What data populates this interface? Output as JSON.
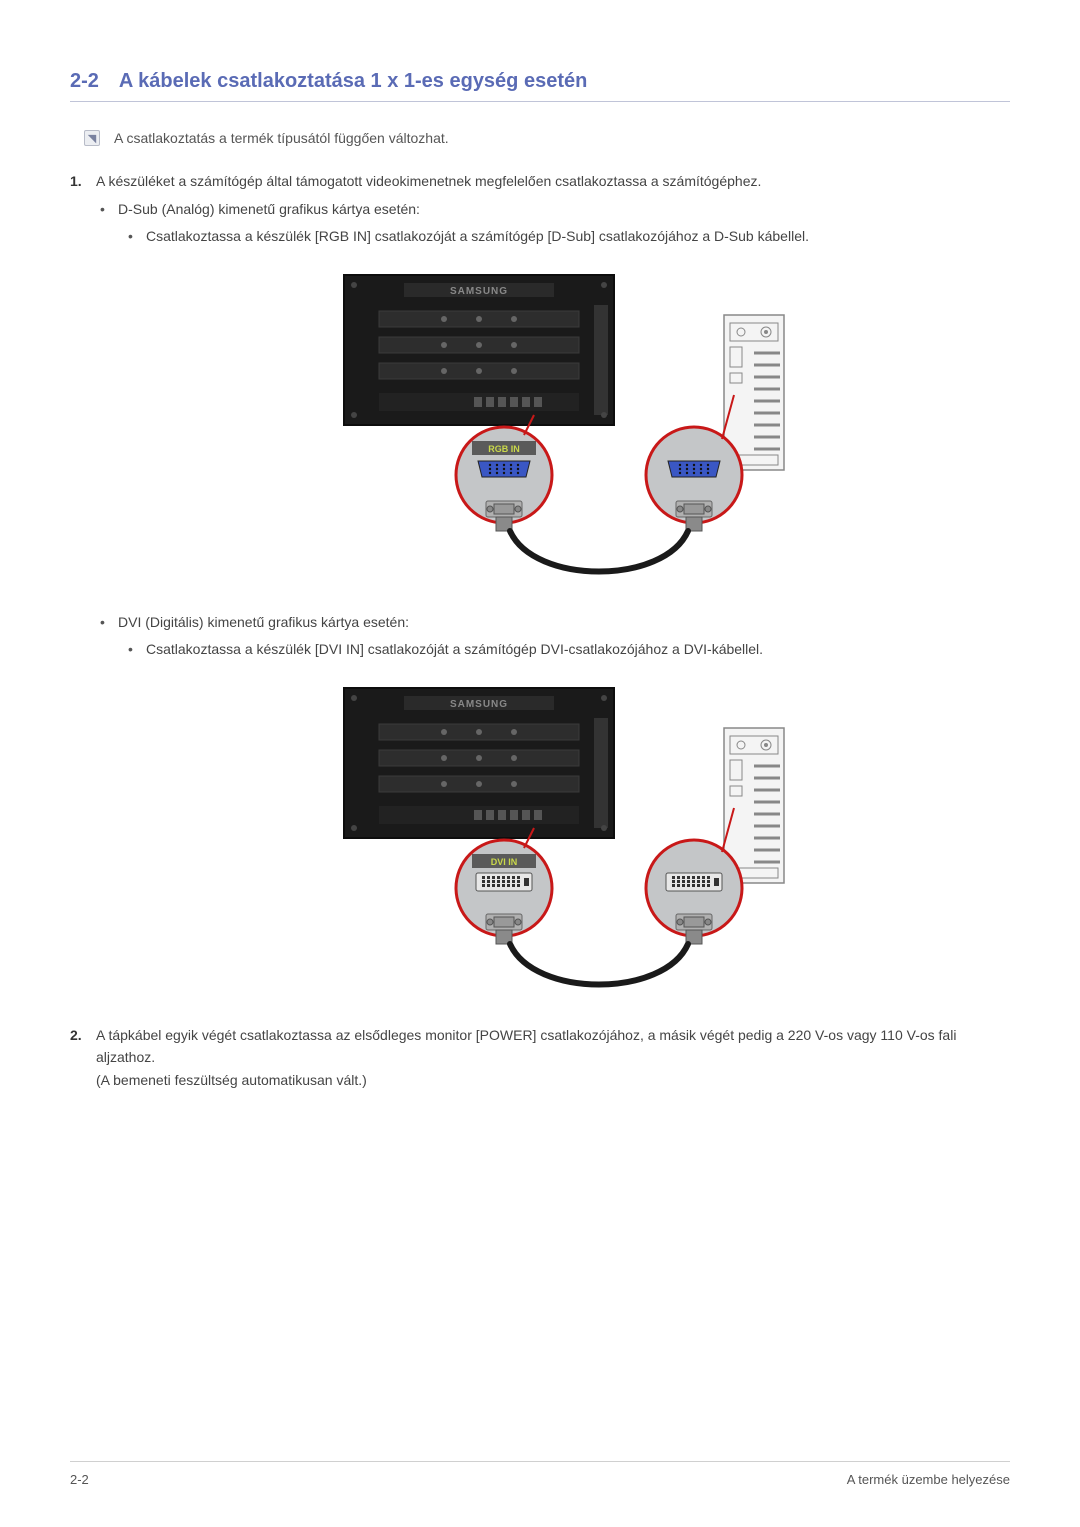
{
  "section": {
    "number": "2-2",
    "title": "A kábelek csatlakoztatása 1 x 1-es egység esetén"
  },
  "note_text": "A csatlakoztatás a termék típusától függően változhat.",
  "step1": {
    "text": "A készüléket a számítógép által támogatott videokimenetnek megfelelően csatlakoztassa a számítógéphez.",
    "dsub": {
      "heading": "D-Sub (Analóg) kimenetű grafikus kártya esetén:",
      "detail": "Csatlakoztassa a készülék [RGB IN] csatlakozóját a számítógép [D-Sub] csatlakozójához a D-Sub kábellel."
    },
    "dvi": {
      "heading": "DVI (Digitális) kimenetű grafikus kártya esetén:",
      "detail": "Csatlakoztassa a készülék [DVI IN] csatlakozóját a számítógép DVI-csatlakozójához a DVI-kábellel."
    }
  },
  "step2": {
    "line1": "A tápkábel egyik végét csatlakoztassa az elsődleges monitor [POWER] csatlakozójához, a másik végét pedig a 220 V-os vagy 110 V-os fali aljzathoz.",
    "line2": "(A bemeneti feszültség automatikusan vált.)"
  },
  "diagram": {
    "brand": "SAMSUNG",
    "rgb_label": "RGB IN",
    "dvi_label": "DVI IN",
    "colors": {
      "panel_bg": "#1a1a1a",
      "panel_border": "#0d0d0d",
      "text_bar": "#2a2a2a",
      "circle_fill": "#c4c6c8",
      "circle_stroke": "#c81818",
      "label_bg": "#5a5a5a",
      "label_text": "#c9d84a",
      "vga_shell": "#3a57c4",
      "dvi_shell": "#e8e8e8",
      "connector_body": "#b0b0b0",
      "cable": "#1a1a1a",
      "pc_lines": "#888888",
      "pc_fill": "#f4f4f4"
    }
  },
  "footer": {
    "left": "2-2",
    "right": "A termék üzembe helyezése"
  }
}
